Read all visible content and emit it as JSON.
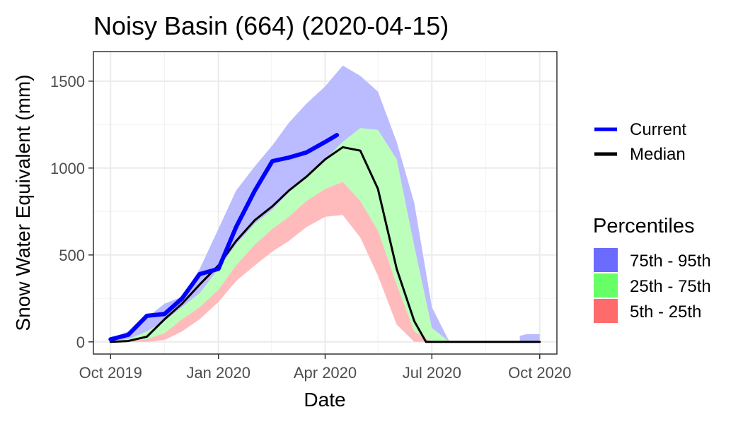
{
  "chart_data": {
    "type": "area",
    "title": "Noisy Basin (664) (2020-04-15)",
    "xlabel": "Date",
    "ylabel": "Snow Water Equivalent (mm)",
    "xlim": [
      "2019-10-01",
      "2020-10-01"
    ],
    "ylim": [
      -70,
      1670
    ],
    "x_ticks": [
      {
        "date": "2019-10-01",
        "label": "Oct 2019"
      },
      {
        "date": "2020-01-01",
        "label": "Jan 2020"
      },
      {
        "date": "2020-04-01",
        "label": "Apr 2020"
      },
      {
        "date": "2020-07-01",
        "label": "Jul 2020"
      },
      {
        "date": "2020-10-01",
        "label": "Oct 2020"
      }
    ],
    "y_ticks": [
      0,
      500,
      1000,
      1500
    ],
    "grid": true,
    "legend_position": "right",
    "dates": [
      "2019-10-01",
      "2019-10-16",
      "2019-11-01",
      "2019-11-16",
      "2019-12-01",
      "2019-12-16",
      "2020-01-01",
      "2020-01-16",
      "2020-02-01",
      "2020-02-16",
      "2020-03-01",
      "2020-03-16",
      "2020-04-01",
      "2020-04-16",
      "2020-05-01",
      "2020-05-16",
      "2020-06-01",
      "2020-06-16",
      "2020-07-01",
      "2020-07-16",
      "2020-08-01",
      "2020-09-01",
      "2020-09-16",
      "2020-10-01"
    ],
    "bands": [
      {
        "name": "75th - 95th",
        "color": "#6b6bff",
        "fill": "#bbbbff",
        "lower": [
          5,
          15,
          60,
          120,
          200,
          280,
          420,
          560,
          680,
          760,
          860,
          960,
          1050,
          1150,
          1230,
          1220,
          1050,
          550,
          80,
          0,
          0,
          0,
          0,
          0
        ],
        "upper": [
          20,
          60,
          140,
          220,
          260,
          420,
          650,
          870,
          1010,
          1130,
          1260,
          1370,
          1470,
          1590,
          1530,
          1440,
          1150,
          800,
          200,
          0,
          0,
          0,
          0,
          0
        ]
      },
      {
        "name": "25th - 75th",
        "color": "#66ff66",
        "fill": "#bbffbb",
        "lower": [
          0,
          5,
          15,
          50,
          130,
          200,
          300,
          440,
          560,
          650,
          720,
          810,
          880,
          920,
          810,
          640,
          330,
          60,
          0,
          0,
          0,
          0,
          0,
          0
        ],
        "upper": [
          5,
          15,
          60,
          120,
          200,
          280,
          420,
          560,
          680,
          760,
          860,
          960,
          1050,
          1150,
          1230,
          1220,
          1050,
          550,
          80,
          0,
          0,
          0,
          0,
          0
        ]
      },
      {
        "name": "5th - 25th",
        "color": "#ff6b6b",
        "fill": "#ffbbbb",
        "lower": [
          0,
          0,
          0,
          10,
          60,
          130,
          230,
          350,
          440,
          520,
          580,
          660,
          720,
          730,
          600,
          380,
          100,
          0,
          0,
          0,
          0,
          0,
          0,
          0
        ],
        "upper": [
          0,
          5,
          15,
          50,
          130,
          200,
          300,
          440,
          560,
          650,
          720,
          810,
          880,
          920,
          810,
          640,
          330,
          60,
          0,
          0,
          0,
          0,
          0,
          0
        ]
      }
    ],
    "series": [
      {
        "name": "Current",
        "color": "#0000ff",
        "x": [
          "2019-10-01",
          "2019-10-16",
          "2019-11-01",
          "2019-11-16",
          "2019-12-01",
          "2019-12-16",
          "2020-01-01",
          "2020-01-16",
          "2020-02-01",
          "2020-02-16",
          "2020-03-01",
          "2020-03-16",
          "2020-04-01",
          "2020-04-11"
        ],
        "y": [
          15,
          40,
          150,
          160,
          250,
          390,
          420,
          660,
          870,
          1040,
          1060,
          1090,
          1150,
          1190
        ]
      },
      {
        "name": "Median",
        "color": "#000000",
        "x": [
          "2019-10-01",
          "2019-10-16",
          "2019-11-01",
          "2019-11-16",
          "2019-12-01",
          "2019-12-16",
          "2020-01-01",
          "2020-01-16",
          "2020-02-01",
          "2020-02-16",
          "2020-03-01",
          "2020-03-16",
          "2020-04-01",
          "2020-04-16",
          "2020-05-01",
          "2020-05-16",
          "2020-06-01",
          "2020-06-16",
          "2020-06-26",
          "2020-07-16",
          "2020-08-01",
          "2020-09-01",
          "2020-09-16",
          "2020-10-01"
        ],
        "y": [
          0,
          5,
          30,
          130,
          220,
          330,
          440,
          580,
          700,
          780,
          870,
          950,
          1050,
          1120,
          1100,
          880,
          420,
          120,
          0,
          0,
          0,
          0,
          0,
          0
        ]
      }
    ],
    "late_tail": {
      "color": "#bbbbff",
      "x": [
        "2020-09-14",
        "2020-09-20",
        "2020-10-01"
      ],
      "y": [
        35,
        45,
        45
      ]
    },
    "legend": {
      "lines": [
        "Current",
        "Median"
      ],
      "bands_title": "Percentiles",
      "bands": [
        "75th - 95th",
        "25th - 75th",
        "5th - 25th"
      ]
    }
  }
}
